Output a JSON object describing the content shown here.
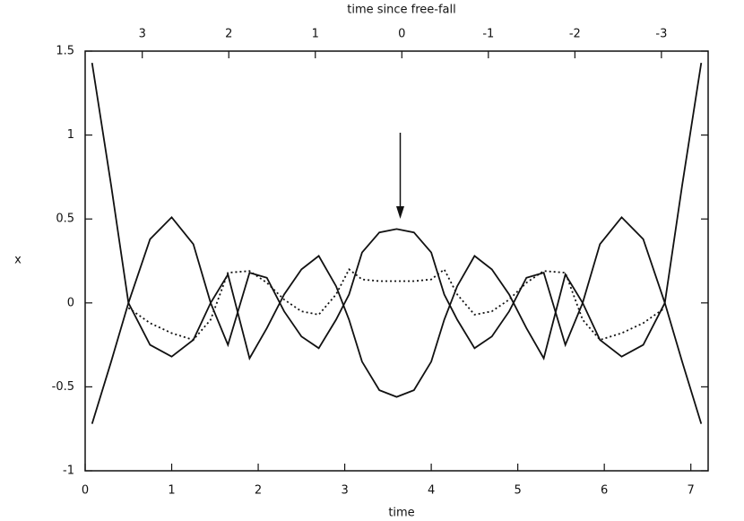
{
  "chart_data": {
    "type": "line",
    "xlabel": "time",
    "ylabel": "x",
    "x2label": "time since free-fall",
    "xlim": [
      0,
      7.2
    ],
    "xticks": [
      0,
      1,
      2,
      3,
      4,
      5,
      6,
      7
    ],
    "ylim": [
      -1,
      1.5
    ],
    "yticks": [
      -1,
      -0.5,
      0,
      0.5,
      1,
      1.5
    ],
    "x2lim": [
      3.66,
      -3.54
    ],
    "x2ticks": [
      3,
      2,
      1,
      0,
      -1,
      -2,
      -3
    ],
    "x": [
      0.08,
      0.3,
      0.5,
      0.75,
      1.0,
      1.25,
      1.45,
      1.65,
      1.9,
      2.1,
      2.3,
      2.5,
      2.7,
      2.9,
      3.05,
      3.2,
      3.4,
      3.6,
      3.8,
      4.0,
      4.15,
      4.3,
      4.5,
      4.7,
      4.9,
      5.1,
      5.3,
      5.55,
      5.75,
      5.95,
      6.2,
      6.45,
      6.7,
      6.9,
      7.12
    ],
    "series": [
      {
        "color": "#111111",
        "style": "solid",
        "values": [
          1.43,
          0.7,
          0.0,
          -0.25,
          -0.32,
          -0.22,
          0.0,
          0.17,
          -0.33,
          -0.15,
          0.05,
          0.2,
          0.28,
          0.1,
          -0.1,
          -0.35,
          -0.52,
          -0.56,
          -0.52,
          -0.35,
          -0.1,
          0.1,
          0.28,
          0.2,
          0.05,
          -0.15,
          -0.33,
          0.17,
          0.0,
          -0.22,
          -0.32,
          -0.25,
          0.0,
          0.7,
          1.43
        ]
      },
      {
        "color": "#111111",
        "style": "solid",
        "values": [
          -0.72,
          -0.35,
          0.0,
          0.38,
          0.51,
          0.35,
          0.0,
          -0.25,
          0.18,
          0.15,
          -0.05,
          -0.2,
          -0.27,
          -0.1,
          0.05,
          0.3,
          0.42,
          0.44,
          0.42,
          0.3,
          0.05,
          -0.1,
          -0.27,
          -0.2,
          -0.05,
          0.15,
          0.18,
          -0.25,
          0.0,
          0.35,
          0.51,
          0.38,
          0.0,
          -0.35,
          -0.72
        ]
      },
      {
        "color": "#111111",
        "style": "dotted",
        "values": [
          null,
          null,
          -0.03,
          -0.12,
          -0.18,
          -0.22,
          -0.1,
          0.18,
          0.19,
          0.12,
          0.02,
          -0.05,
          -0.07,
          0.05,
          0.2,
          0.14,
          0.13,
          0.13,
          0.13,
          0.14,
          0.2,
          0.05,
          -0.07,
          -0.05,
          0.02,
          0.12,
          0.19,
          0.18,
          -0.1,
          -0.22,
          -0.18,
          -0.12,
          -0.03,
          null,
          null
        ]
      }
    ]
  }
}
